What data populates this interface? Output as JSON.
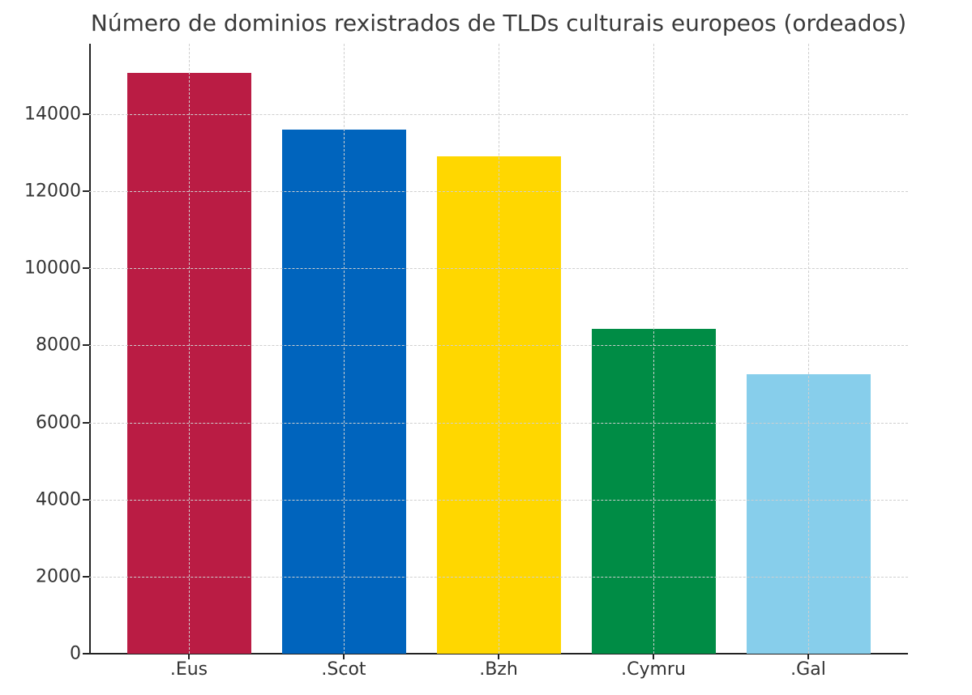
{
  "chart_data": {
    "type": "bar",
    "title": "Número de dominios rexistrados de TLDs culturais europeos (ordeados)",
    "xlabel": "",
    "ylabel": "",
    "categories": [
      ".Eus",
      ".Scot",
      ".Bzh",
      ".Cymru",
      ".Gal"
    ],
    "values": [
      15070,
      13600,
      12900,
      8430,
      7250
    ],
    "colors": [
      "#BA1C44",
      "#0064BD",
      "#FFD700",
      "#008C45",
      "#87CEEB"
    ],
    "ylim": [
      0,
      15800
    ],
    "yticks": [
      0,
      2000,
      4000,
      6000,
      8000,
      10000,
      12000,
      14000
    ],
    "grid": true,
    "legend": null
  },
  "labels": {
    "title": "Número de dominios rexistrados de TLDs culturais europeos (ordeados)",
    "yticks": [
      "0",
      "2000",
      "4000",
      "6000",
      "8000",
      "10000",
      "12000",
      "14000"
    ],
    "categories": [
      ".Eus",
      ".Scot",
      ".Bzh",
      ".Cymru",
      ".Gal"
    ]
  }
}
